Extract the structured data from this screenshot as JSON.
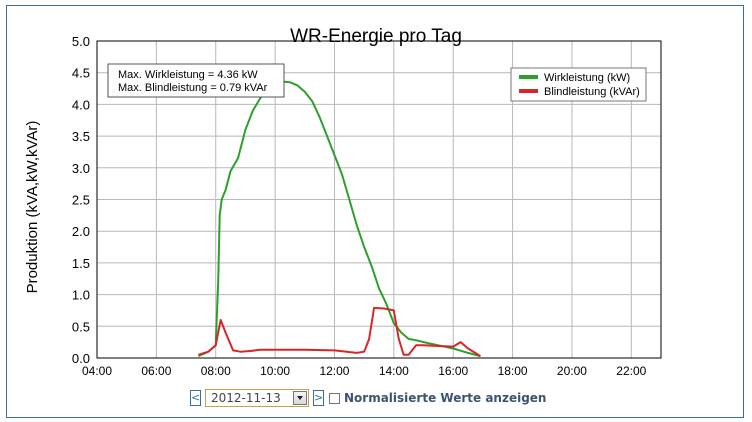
{
  "chart_data": {
    "type": "line",
    "title": "WR-Energie pro Tag",
    "ylabel": "Produktion (kVA,kW,kVAr)",
    "xlabel": "",
    "xlim_hours": [
      4,
      23
    ],
    "ylim": [
      0,
      5.0
    ],
    "x_ticks": [
      "04:00",
      "06:00",
      "08:00",
      "10:00",
      "12:00",
      "14:00",
      "16:00",
      "18:00",
      "20:00",
      "22:00"
    ],
    "y_ticks": [
      "0.0",
      "0.5",
      "1.0",
      "1.5",
      "2.0",
      "2.5",
      "3.0",
      "3.5",
      "4.0",
      "4.5",
      "5.0"
    ],
    "grid": true,
    "legend_position": "top-right",
    "annotation_lines": [
      "Max. Wirkleistung = 4.36 kW",
      "Max. Blindleistung = 0.79 kVAr"
    ],
    "series": [
      {
        "name": "Wirkleistung (kW)",
        "color": "#2ca02c",
        "x": [
          "07:25",
          "07:45",
          "08:00",
          "08:05",
          "08:08",
          "08:12",
          "08:20",
          "08:30",
          "08:45",
          "09:00",
          "09:15",
          "09:30",
          "09:45",
          "10:00",
          "10:15",
          "10:30",
          "10:45",
          "11:00",
          "11:15",
          "11:30",
          "11:45",
          "12:00",
          "12:15",
          "12:30",
          "12:45",
          "13:00",
          "13:15",
          "13:30",
          "13:45",
          "14:00",
          "14:15",
          "14:30",
          "14:45",
          "15:00",
          "15:30",
          "16:00",
          "16:30",
          "16:55"
        ],
        "values": [
          0.03,
          0.1,
          0.2,
          1.2,
          2.25,
          2.5,
          2.65,
          2.95,
          3.15,
          3.6,
          3.9,
          4.1,
          4.25,
          4.34,
          4.36,
          4.35,
          4.3,
          4.2,
          4.05,
          3.8,
          3.5,
          3.2,
          2.9,
          2.5,
          2.1,
          1.75,
          1.45,
          1.1,
          0.85,
          0.55,
          0.4,
          0.3,
          0.28,
          0.25,
          0.2,
          0.15,
          0.08,
          0.03
        ]
      },
      {
        "name": "Blindleistung (kVAr)",
        "color": "#d62728",
        "x": [
          "07:25",
          "07:45",
          "08:00",
          "08:05",
          "08:10",
          "08:20",
          "08:35",
          "08:50",
          "09:10",
          "09:30",
          "10:00",
          "11:00",
          "12:00",
          "12:45",
          "13:00",
          "13:10",
          "13:20",
          "13:40",
          "14:00",
          "14:10",
          "14:20",
          "14:30",
          "14:45",
          "15:00",
          "15:30",
          "16:00",
          "16:15",
          "16:30",
          "16:55"
        ],
        "values": [
          0.05,
          0.1,
          0.2,
          0.4,
          0.6,
          0.4,
          0.12,
          0.1,
          0.11,
          0.13,
          0.13,
          0.13,
          0.12,
          0.08,
          0.1,
          0.3,
          0.79,
          0.78,
          0.75,
          0.3,
          0.05,
          0.05,
          0.2,
          0.2,
          0.19,
          0.18,
          0.25,
          0.15,
          0.03
        ]
      }
    ]
  },
  "controls": {
    "prev_label": "<",
    "next_label": ">",
    "date_value": "2012-11-13",
    "normalize_label": "Normalisierte Werte anzeigen"
  }
}
